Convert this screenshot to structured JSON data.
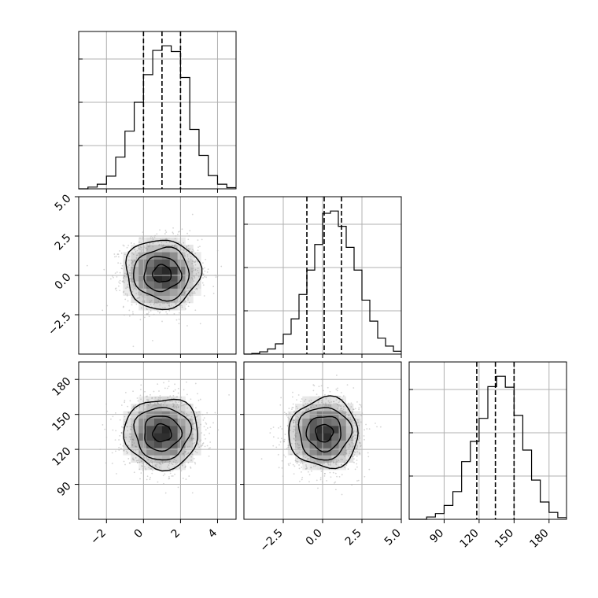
{
  "chart_data": {
    "type": "corner",
    "grid": true,
    "parameters": [
      {
        "index": 0,
        "range": [
          -3.5,
          5.0
        ],
        "ticks": [
          "−2",
          "0",
          "2",
          "4"
        ],
        "tick_values": [
          -2,
          0,
          2,
          4
        ]
      },
      {
        "index": 1,
        "range": [
          -5.0,
          5.0
        ],
        "ticks": [
          "−2.5",
          "0.0",
          "2.5",
          "5.0"
        ],
        "tick_values": [
          -2.5,
          0.0,
          2.5,
          5.0
        ]
      },
      {
        "index": 2,
        "range": [
          60,
          195
        ],
        "ticks": [
          "90",
          "120",
          "150",
          "180"
        ],
        "tick_values": [
          90,
          120,
          150,
          180
        ]
      }
    ],
    "marginals": [
      {
        "param": 0,
        "quantiles": [
          0.0,
          1.0,
          2.0
        ],
        "bin_edges": [
          -3.5,
          -3.0,
          -2.5,
          -2.0,
          -1.5,
          -1.0,
          -0.5,
          0.0,
          0.5,
          1.0,
          1.5,
          2.0,
          2.5,
          3.0,
          3.5,
          4.0,
          4.5,
          5.0
        ],
        "counts": [
          0,
          3,
          8,
          22,
          55,
          100,
          150,
          198,
          240,
          248,
          238,
          193,
          103,
          58,
          23,
          8,
          2
        ]
      },
      {
        "param": 1,
        "quantiles": [
          -1.0,
          0.1,
          1.2
        ],
        "bin_edges": [
          -5.0,
          -4.5,
          -4.0,
          -3.5,
          -3.0,
          -2.5,
          -2.0,
          -1.5,
          -1.0,
          -0.5,
          0.0,
          0.5,
          1.0,
          1.5,
          2.0,
          2.5,
          3.0,
          3.5,
          4.0,
          4.5,
          5.0
        ],
        "counts": [
          0,
          1,
          4,
          9,
          18,
          35,
          62,
          105,
          148,
          193,
          248,
          252,
          225,
          188,
          148,
          95,
          58,
          28,
          14,
          5
        ]
      },
      {
        "param": 2,
        "quantiles": [
          118,
          134,
          150
        ],
        "bin_edges": [
          60,
          67.5,
          75,
          82.5,
          90,
          97.5,
          105,
          112.5,
          120,
          127.5,
          135,
          142.5,
          150,
          157.5,
          165,
          172.5,
          180,
          187.5,
          195
        ],
        "counts": [
          0,
          0,
          4,
          10,
          24,
          48,
          100,
          135,
          175,
          230,
          248,
          229,
          180,
          120,
          68,
          30,
          12,
          3
        ]
      }
    ],
    "joint": [
      {
        "x_param": 0,
        "y_param": 1,
        "center": [
          1.0,
          0.1
        ],
        "sigma": [
          1.0,
          1.1
        ],
        "rho": 0.0
      },
      {
        "x_param": 0,
        "y_param": 2,
        "center": [
          1.0,
          134
        ],
        "sigma": [
          1.0,
          15
        ],
        "rho": 0.0
      },
      {
        "x_param": 1,
        "y_param": 2,
        "center": [
          0.1,
          134
        ],
        "sigma": [
          1.1,
          15
        ],
        "rho": 0.0
      }
    ]
  }
}
